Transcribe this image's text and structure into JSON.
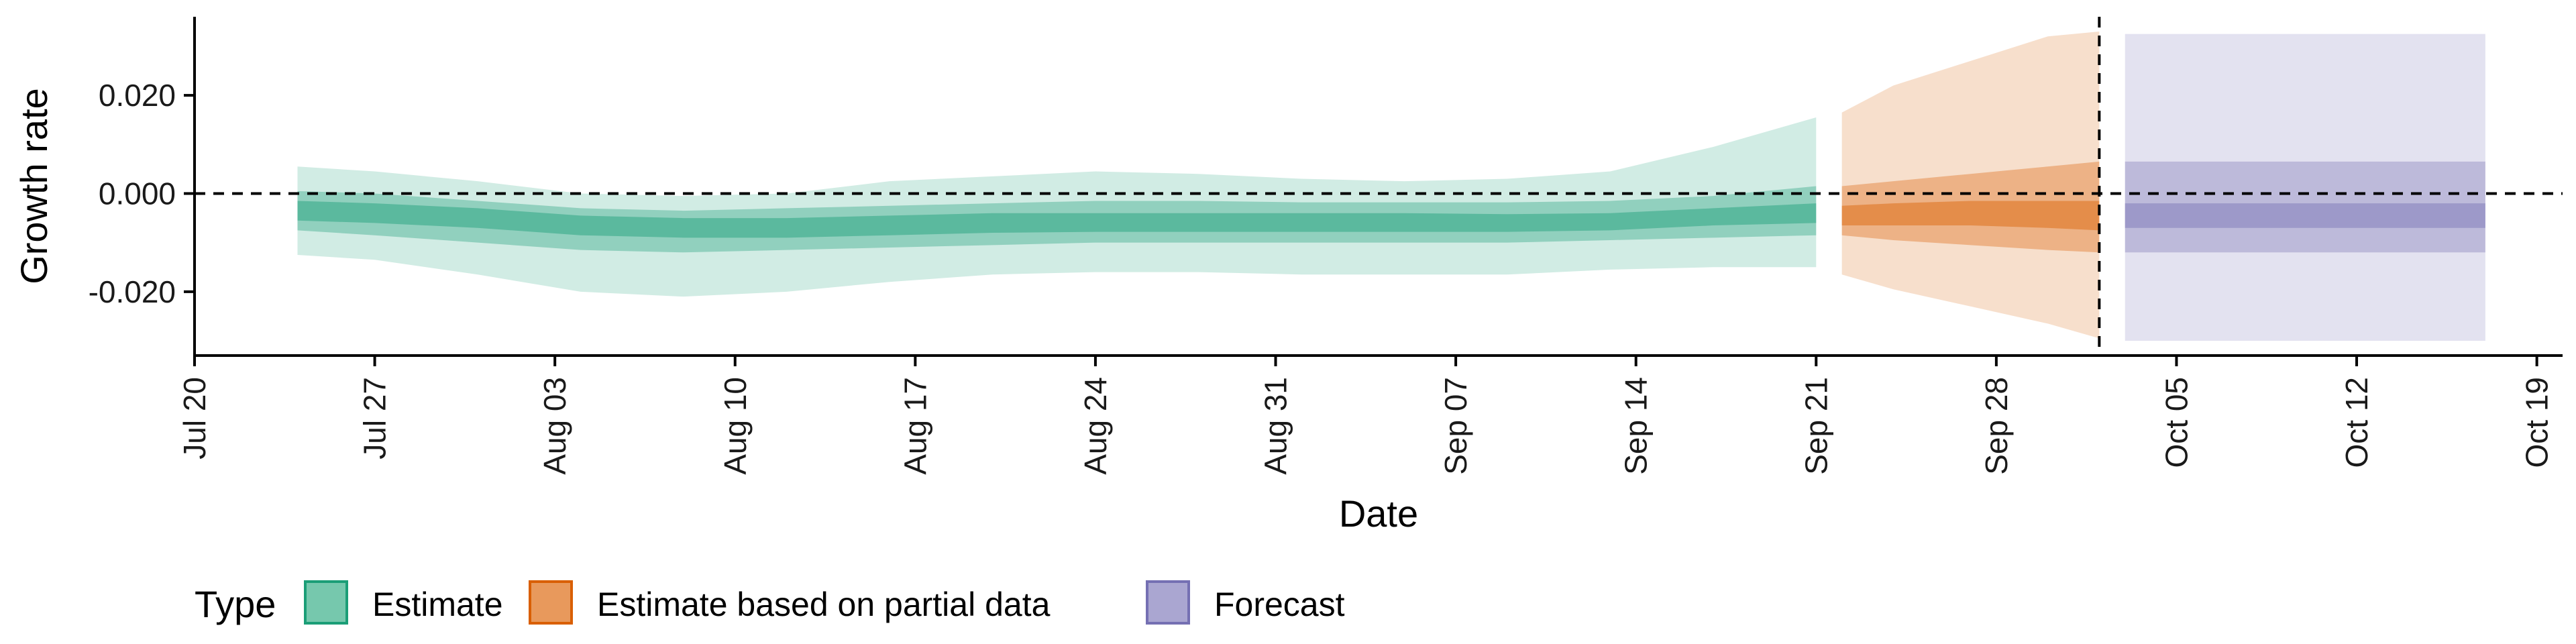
{
  "chart_data": {
    "type": "area",
    "xlabel": "Date",
    "ylabel": "Growth rate",
    "ylim": [
      -0.033,
      0.036
    ],
    "x_range": [
      "2020-07-20",
      "2020-10-20"
    ],
    "x_ticks": [
      "Jul 20",
      "Jul 27",
      "Aug 03",
      "Aug 10",
      "Aug 17",
      "Aug 24",
      "Aug 31",
      "Sep 07",
      "Sep 14",
      "Sep 21",
      "Sep 28",
      "Oct 05",
      "Oct 12",
      "Oct 19"
    ],
    "x_tick_dates": [
      "2020-07-20",
      "2020-07-27",
      "2020-08-03",
      "2020-08-10",
      "2020-08-17",
      "2020-08-24",
      "2020-08-31",
      "2020-09-07",
      "2020-09-14",
      "2020-09-21",
      "2020-09-28",
      "2020-10-05",
      "2020-10-12",
      "2020-10-19"
    ],
    "y_ticks": [
      0.02,
      0.0,
      -0.02
    ],
    "y_tick_labels": [
      "0.020",
      "0.000",
      "-0.020"
    ],
    "reference_hline": 0.0,
    "reference_vline": "2020-10-02",
    "grid": false,
    "legend": {
      "title": "Type",
      "position": "bottom-left",
      "items": [
        {
          "label": "Estimate",
          "fill": "#76c8ad",
          "border": "#1b9e77"
        },
        {
          "label": "Estimate based on partial data",
          "fill": "#e8995c",
          "border": "#d95f02"
        },
        {
          "label": "Forecast",
          "fill": "#aaa6d1",
          "border": "#7570b3"
        }
      ]
    },
    "series": [
      {
        "name": "Estimate",
        "color": "#1b9e77",
        "points": [
          [
            "2020-07-24",
            -0.0125,
            -0.0075,
            -0.0055,
            -0.0015,
            0.0005,
            0.0055
          ],
          [
            "2020-07-27",
            -0.0135,
            -0.0085,
            -0.006,
            -0.002,
            0.0,
            0.0045
          ],
          [
            "2020-07-31",
            -0.0165,
            -0.01,
            -0.007,
            -0.003,
            -0.0015,
            0.0025
          ],
          [
            "2020-08-04",
            -0.02,
            -0.0115,
            -0.0085,
            -0.0045,
            -0.003,
            0.0
          ],
          [
            "2020-08-08",
            -0.021,
            -0.012,
            -0.009,
            -0.005,
            -0.0035,
            -0.0005
          ],
          [
            "2020-08-12",
            -0.02,
            -0.0115,
            -0.009,
            -0.005,
            -0.003,
            0.0
          ],
          [
            "2020-08-16",
            -0.018,
            -0.011,
            -0.0085,
            -0.0045,
            -0.0025,
            0.0025
          ],
          [
            "2020-08-20",
            -0.0165,
            -0.0105,
            -0.008,
            -0.004,
            -0.002,
            0.0035
          ],
          [
            "2020-08-24",
            -0.016,
            -0.01,
            -0.0078,
            -0.004,
            -0.0015,
            0.0045
          ],
          [
            "2020-08-28",
            -0.016,
            -0.01,
            -0.0078,
            -0.004,
            -0.0015,
            0.004
          ],
          [
            "2020-09-01",
            -0.0165,
            -0.01,
            -0.0078,
            -0.004,
            -0.0018,
            0.003
          ],
          [
            "2020-09-05",
            -0.0165,
            -0.01,
            -0.0078,
            -0.004,
            -0.0018,
            0.0025
          ],
          [
            "2020-09-09",
            -0.0165,
            -0.01,
            -0.0078,
            -0.0042,
            -0.0018,
            0.003
          ],
          [
            "2020-09-13",
            -0.0155,
            -0.0095,
            -0.0075,
            -0.004,
            -0.0015,
            0.0045
          ],
          [
            "2020-09-17",
            -0.015,
            -0.009,
            -0.0065,
            -0.003,
            -0.0005,
            0.0095
          ],
          [
            "2020-09-21",
            -0.015,
            -0.0085,
            -0.006,
            -0.002,
            0.0015,
            0.0155
          ]
        ]
      },
      {
        "name": "Estimate based on partial data",
        "color": "#d95f02",
        "points": [
          [
            "2020-09-22",
            -0.0165,
            -0.0085,
            -0.0065,
            -0.0025,
            0.0015,
            0.0165
          ],
          [
            "2020-09-24",
            -0.0195,
            -0.0095,
            -0.0065,
            -0.002,
            0.0025,
            0.022
          ],
          [
            "2020-09-27",
            -0.023,
            -0.0105,
            -0.0065,
            -0.0015,
            0.004,
            0.027
          ],
          [
            "2020-09-30",
            -0.0265,
            -0.0115,
            -0.007,
            -0.0015,
            0.0055,
            0.032
          ],
          [
            "2020-10-02",
            -0.0295,
            -0.012,
            -0.0075,
            -0.0015,
            0.0065,
            0.033
          ]
        ]
      },
      {
        "name": "Forecast",
        "color": "#7570b3",
        "points": [
          [
            "2020-10-03",
            -0.03,
            -0.012,
            -0.007,
            -0.002,
            0.0065,
            0.0325
          ],
          [
            "2020-10-17",
            -0.03,
            -0.012,
            -0.007,
            -0.002,
            0.0065,
            0.0325
          ]
        ]
      }
    ]
  }
}
